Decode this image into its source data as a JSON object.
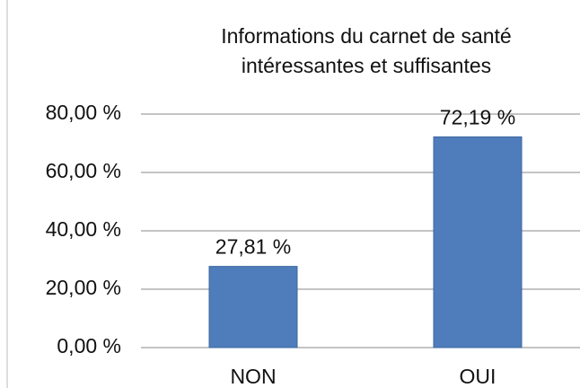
{
  "chart_data": {
    "type": "bar",
    "title": [
      "Informations du carnet de santé",
      "intéressantes et suffisantes"
    ],
    "categories": [
      "NON",
      "OUI"
    ],
    "values": [
      27.81,
      72.19
    ],
    "value_labels": [
      "27,81 %",
      "72,19 %"
    ],
    "color": "#4f7dbb",
    "ylim": [
      0,
      80
    ],
    "yticks": [
      {
        "value": 0,
        "label": "0,00 %"
      },
      {
        "value": 20,
        "label": "20,00 %"
      },
      {
        "value": 40,
        "label": "40,00 %"
      },
      {
        "value": 60,
        "label": "60,00 %"
      },
      {
        "value": 80,
        "label": "80,00 %"
      }
    ],
    "grid": true
  }
}
